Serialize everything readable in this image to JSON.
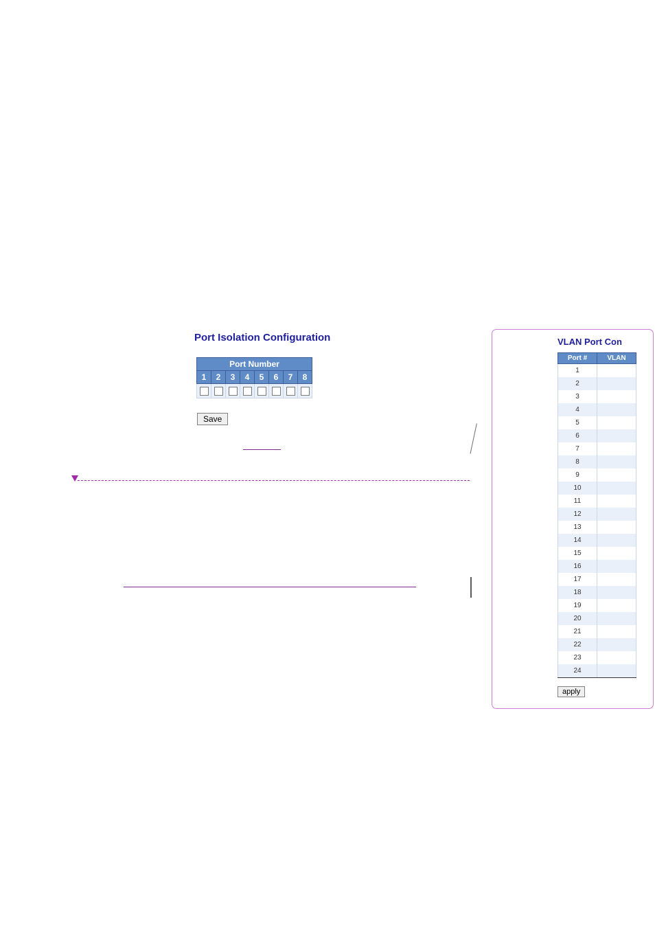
{
  "iso": {
    "title": "Port Isolation Configuration",
    "header": "Port Number",
    "ports": [
      "1",
      "2",
      "3",
      "4",
      "5",
      "6",
      "7",
      "8"
    ],
    "save_label": "Save"
  },
  "lines": {
    "short_color": "#7d2a91",
    "dotted_color": "#9e2da8",
    "panel_border": "#cf7fd2"
  },
  "vlan": {
    "title": "VLAN Port Con",
    "col_port": "Port #",
    "col_vlan": "VLAN",
    "rows": [
      "1",
      "2",
      "3",
      "4",
      "5",
      "6",
      "7",
      "8",
      "9",
      "10",
      "11",
      "12",
      "13",
      "14",
      "15",
      "16",
      "17",
      "18",
      "19",
      "20",
      "21",
      "22",
      "23",
      "24"
    ],
    "apply_label": "apply"
  }
}
